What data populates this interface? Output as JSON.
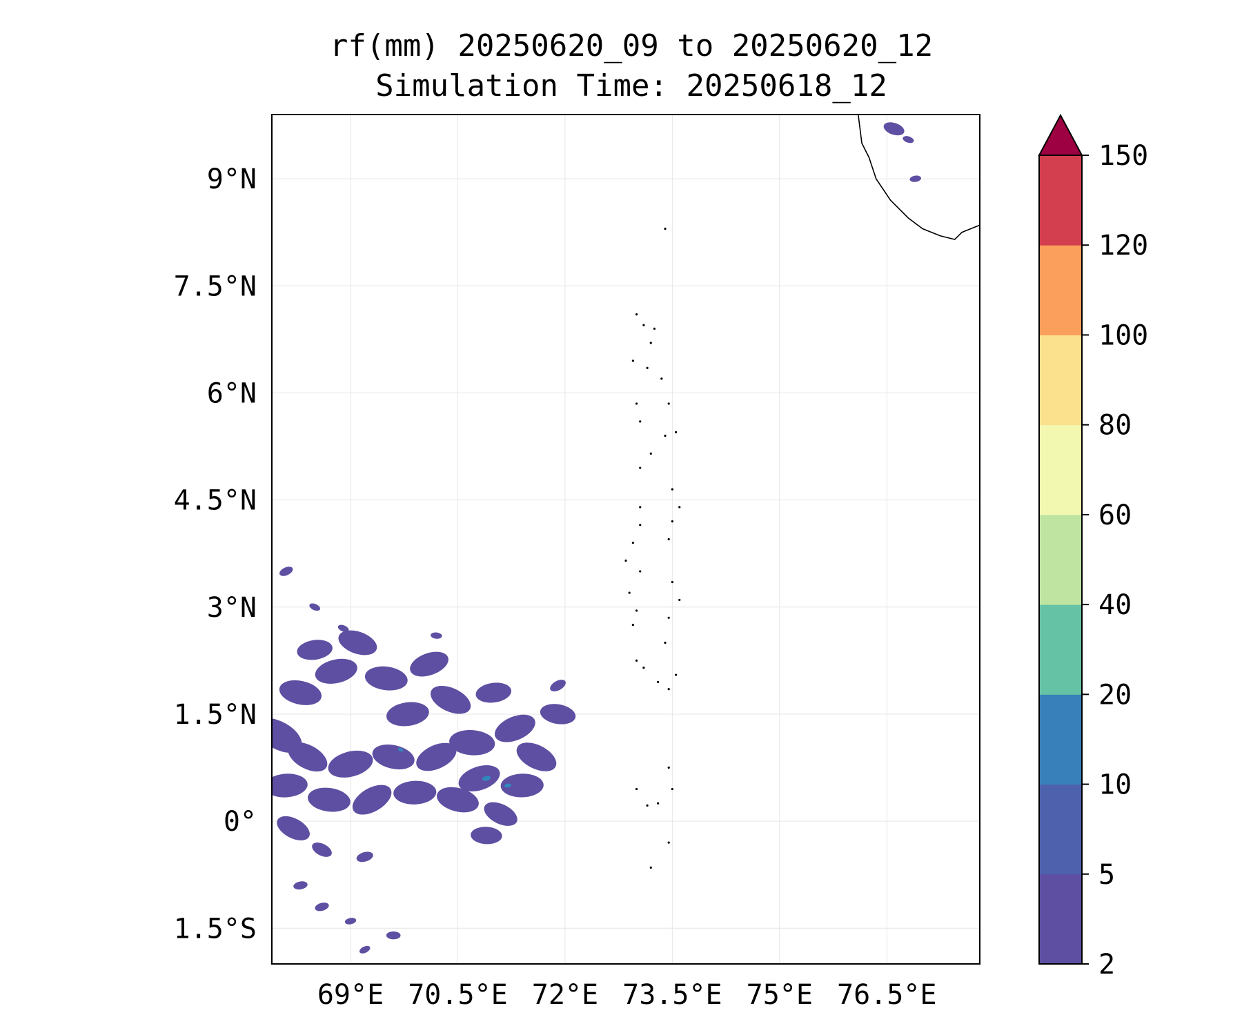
{
  "title": {
    "line1": "rf(mm) 20250620_09 to 20250620_12",
    "line2": "Simulation Time: 20250618_12"
  },
  "map": {
    "lon_range": [
      67.9,
      77.8
    ],
    "lat_range": [
      -2.0,
      9.9
    ],
    "x_ticks": [
      {
        "lon": 69.0,
        "label": "69°E"
      },
      {
        "lon": 70.5,
        "label": "70.5°E"
      },
      {
        "lon": 72.0,
        "label": "72°E"
      },
      {
        "lon": 73.5,
        "label": "73.5°E"
      },
      {
        "lon": 75.0,
        "label": "75°E"
      },
      {
        "lon": 76.5,
        "label": "76.5°E"
      }
    ],
    "y_ticks": [
      {
        "lat": 9.0,
        "label": "9°N"
      },
      {
        "lat": 7.5,
        "label": "7.5°N"
      },
      {
        "lat": 6.0,
        "label": "6°N"
      },
      {
        "lat": 4.5,
        "label": "4.5°N"
      },
      {
        "lat": 3.0,
        "label": "3°N"
      },
      {
        "lat": 1.5,
        "label": "1.5°N"
      },
      {
        "lat": 0.0,
        "label": "0°"
      },
      {
        "lat": -1.5,
        "label": "1.5°S"
      }
    ],
    "grid": true,
    "gridline_color": "#e6e6e6",
    "coastline_color": "#000000",
    "coastline_india": [
      [
        76.1,
        9.9
      ],
      [
        76.15,
        9.5
      ],
      [
        76.25,
        9.3
      ],
      [
        76.35,
        9.0
      ],
      [
        76.55,
        8.7
      ],
      [
        76.8,
        8.45
      ],
      [
        77.0,
        8.3
      ],
      [
        77.25,
        8.2
      ],
      [
        77.45,
        8.15
      ],
      [
        77.55,
        8.25
      ],
      [
        77.8,
        8.35
      ]
    ],
    "islands": [
      {
        "lon": 73.4,
        "lat": 8.3
      },
      {
        "lon": 73.0,
        "lat": 7.1
      },
      {
        "lon": 73.1,
        "lat": 6.95
      },
      {
        "lon": 73.25,
        "lat": 6.9
      },
      {
        "lon": 73.2,
        "lat": 6.7
      },
      {
        "lon": 72.95,
        "lat": 6.45
      },
      {
        "lon": 73.15,
        "lat": 6.35
      },
      {
        "lon": 73.35,
        "lat": 6.2
      },
      {
        "lon": 73.0,
        "lat": 5.85
      },
      {
        "lon": 73.05,
        "lat": 5.6
      },
      {
        "lon": 73.45,
        "lat": 5.85
      },
      {
        "lon": 73.55,
        "lat": 5.45
      },
      {
        "lon": 73.4,
        "lat": 5.4
      },
      {
        "lon": 73.2,
        "lat": 5.15
      },
      {
        "lon": 73.05,
        "lat": 4.95
      },
      {
        "lon": 73.5,
        "lat": 4.65
      },
      {
        "lon": 73.6,
        "lat": 4.4
      },
      {
        "lon": 73.5,
        "lat": 4.2
      },
      {
        "lon": 73.45,
        "lat": 3.95
      },
      {
        "lon": 73.05,
        "lat": 4.4
      },
      {
        "lon": 73.05,
        "lat": 4.15
      },
      {
        "lon": 72.95,
        "lat": 3.9
      },
      {
        "lon": 72.85,
        "lat": 3.65
      },
      {
        "lon": 73.05,
        "lat": 3.5
      },
      {
        "lon": 73.5,
        "lat": 3.35
      },
      {
        "lon": 73.6,
        "lat": 3.1
      },
      {
        "lon": 72.9,
        "lat": 3.2
      },
      {
        "lon": 73.0,
        "lat": 2.95
      },
      {
        "lon": 72.95,
        "lat": 2.75
      },
      {
        "lon": 73.45,
        "lat": 2.85
      },
      {
        "lon": 73.4,
        "lat": 2.5
      },
      {
        "lon": 73.0,
        "lat": 2.25
      },
      {
        "lon": 73.1,
        "lat": 2.15
      },
      {
        "lon": 73.55,
        "lat": 2.05
      },
      {
        "lon": 73.45,
        "lat": 1.85
      },
      {
        "lon": 73.3,
        "lat": 1.95
      },
      {
        "lon": 73.45,
        "lat": 0.75
      },
      {
        "lon": 73.5,
        "lat": 0.45
      },
      {
        "lon": 73.3,
        "lat": 0.25
      },
      {
        "lon": 73.0,
        "lat": 0.45
      },
      {
        "lon": 73.15,
        "lat": 0.22
      },
      {
        "lon": 73.45,
        "lat": -0.3
      },
      {
        "lon": 73.2,
        "lat": -0.65
      }
    ]
  },
  "rainfall_fields": [
    {
      "level": "2-5",
      "color": "#5e4fa2",
      "points": [
        [
          68.0,
          1.2,
          0.35
        ],
        [
          68.3,
          1.8,
          0.3
        ],
        [
          68.5,
          2.4,
          0.25
        ],
        [
          68.8,
          2.1,
          0.3
        ],
        [
          69.1,
          2.5,
          0.28
        ],
        [
          69.5,
          2.0,
          0.3
        ],
        [
          69.8,
          1.5,
          0.3
        ],
        [
          70.1,
          2.2,
          0.28
        ],
        [
          70.4,
          1.7,
          0.3
        ],
        [
          70.7,
          1.1,
          0.32
        ],
        [
          71.0,
          1.8,
          0.25
        ],
        [
          71.3,
          1.3,
          0.3
        ],
        [
          71.6,
          0.9,
          0.3
        ],
        [
          71.9,
          1.5,
          0.25
        ],
        [
          68.1,
          0.5,
          0.3
        ],
        [
          68.4,
          0.9,
          0.3
        ],
        [
          68.7,
          0.3,
          0.3
        ],
        [
          69.0,
          0.8,
          0.32
        ],
        [
          69.3,
          0.3,
          0.3
        ],
        [
          69.6,
          0.9,
          0.3
        ],
        [
          69.9,
          0.4,
          0.3
        ],
        [
          70.2,
          0.9,
          0.3
        ],
        [
          70.5,
          0.3,
          0.3
        ],
        [
          70.8,
          0.6,
          0.3
        ],
        [
          71.1,
          0.1,
          0.25
        ],
        [
          71.4,
          0.5,
          0.3
        ],
        [
          70.9,
          -0.2,
          0.22
        ],
        [
          68.2,
          -0.1,
          0.25
        ],
        [
          68.6,
          -0.4,
          0.15
        ],
        [
          69.2,
          -0.5,
          0.12
        ],
        [
          68.1,
          3.5,
          0.1
        ],
        [
          68.5,
          3.0,
          0.08
        ],
        [
          68.3,
          -0.9,
          0.1
        ],
        [
          68.6,
          -1.2,
          0.1
        ],
        [
          69.0,
          -1.4,
          0.08
        ],
        [
          69.6,
          -1.6,
          0.1
        ],
        [
          69.2,
          -1.8,
          0.08
        ],
        [
          71.9,
          1.9,
          0.12
        ],
        [
          68.9,
          2.7,
          0.08
        ],
        [
          70.2,
          2.6,
          0.08
        ]
      ]
    },
    {
      "level": "5-10",
      "color": "#3288bd",
      "points": [
        [
          70.9,
          0.6,
          0.06
        ],
        [
          71.2,
          0.5,
          0.05
        ],
        [
          69.7,
          1.0,
          0.04
        ]
      ]
    },
    {
      "level": "india",
      "color": "#5e4fa2",
      "points": [
        [
          76.6,
          9.7,
          0.15
        ],
        [
          76.8,
          9.55,
          0.08
        ],
        [
          76.9,
          9.0,
          0.08
        ]
      ]
    }
  ],
  "colorbar": {
    "labels": [
      "2",
      "5",
      "10",
      "20",
      "40",
      "60",
      "80",
      "100",
      "120",
      "150"
    ],
    "colors": [
      "#5e4fa2",
      "#4e61ad",
      "#3880b9",
      "#66c2a5",
      "#bfe3a1",
      "#f3f8b0",
      "#fbe08e",
      "#fa9f5c",
      "#d33f4f"
    ],
    "extend_color": "#9e0142"
  }
}
